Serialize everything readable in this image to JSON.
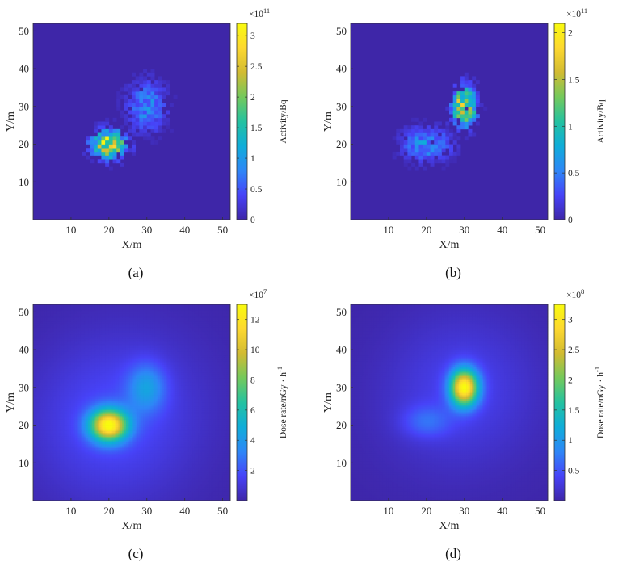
{
  "colormap": [
    "#3e26a8",
    "#4743f8",
    "#2e87f7",
    "#0fadd9",
    "#24c2a0",
    "#74c95c",
    "#d2bb32",
    "#fdd830",
    "#f9fb0e"
  ],
  "background_color": "#3e26a8",
  "chart_data": [
    {
      "type": "heatmap",
      "panel_label": "(a)",
      "xlabel": "X/m",
      "ylabel": "Y/m",
      "xlim": [
        0,
        52
      ],
      "ylim": [
        0,
        52
      ],
      "xticks": [
        10,
        20,
        30,
        40,
        50
      ],
      "yticks": [
        10,
        20,
        30,
        40,
        50
      ],
      "colorbar_label": "Activity/Bq",
      "colorbar_exponent": "×10",
      "colorbar_exponent_power": "11",
      "colorbar_range": [
        0,
        3.2
      ],
      "colorbar_ticks": [
        0,
        0.5,
        1,
        1.5,
        2,
        2.5,
        3
      ],
      "colorbar_tick_labels": [
        "0",
        "0.5",
        "1",
        "1.5",
        "2",
        "2.5",
        "3"
      ],
      "rendering": "pixelated",
      "sources": [
        {
          "x": 20,
          "y": 20,
          "peak": 3.2,
          "sigma_x": 3.0,
          "sigma_y": 2.5,
          "extent": 7
        },
        {
          "x": 30,
          "y": 30,
          "peak": 1.0,
          "sigma_x": 3.5,
          "sigma_y": 4.5,
          "extent": 10
        }
      ]
    },
    {
      "type": "heatmap",
      "panel_label": "(b)",
      "xlabel": "X/m",
      "ylabel": "Y/m",
      "xlim": [
        0,
        52
      ],
      "ylim": [
        0,
        52
      ],
      "xticks": [
        10,
        20,
        30,
        40,
        50
      ],
      "yticks": [
        10,
        20,
        30,
        40,
        50
      ],
      "colorbar_label": "Activity/Bq",
      "colorbar_exponent": "×10",
      "colorbar_exponent_power": "11",
      "colorbar_range": [
        0,
        2.1
      ],
      "colorbar_ticks": [
        0,
        0.5,
        1,
        1.5,
        2
      ],
      "colorbar_tick_labels": [
        "0",
        "0.5",
        "1",
        "1.5",
        "2"
      ],
      "rendering": "pixelated",
      "sources": [
        {
          "x": 20,
          "y": 20,
          "peak": 0.7,
          "sigma_x": 4.5,
          "sigma_y": 3.0,
          "extent": 9
        },
        {
          "x": 30,
          "y": 30,
          "peak": 2.1,
          "sigma_x": 2.0,
          "sigma_y": 3.5,
          "extent": 8
        }
      ]
    },
    {
      "type": "heatmap",
      "panel_label": "(c)",
      "xlabel": "X/m",
      "ylabel": "Y/m",
      "xlim": [
        0,
        52
      ],
      "ylim": [
        0,
        52
      ],
      "xticks": [
        10,
        20,
        30,
        40,
        50
      ],
      "yticks": [
        10,
        20,
        30,
        40,
        50
      ],
      "colorbar_label": "Dose rate/nGy · h",
      "colorbar_label_power": "-1",
      "colorbar_exponent": "×10",
      "colorbar_exponent_power": "7",
      "colorbar_range": [
        0,
        13
      ],
      "colorbar_ticks": [
        2,
        4,
        6,
        8,
        10,
        12
      ],
      "colorbar_tick_labels": [
        "2",
        "4",
        "6",
        "8",
        "10",
        "12"
      ],
      "rendering": "smooth",
      "sources": [
        {
          "x": 20,
          "y": 20,
          "peak": 13,
          "sigma_x": 3.5,
          "sigma_y": 3.0,
          "halo": 0.12,
          "halo_sigma": 15
        },
        {
          "x": 30,
          "y": 30,
          "peak": 3.5,
          "sigma_x": 3.5,
          "sigma_y": 4.5,
          "halo": 0.12,
          "halo_sigma": 15
        }
      ]
    },
    {
      "type": "heatmap",
      "panel_label": "(d)",
      "xlabel": "X/m",
      "ylabel": "Y/m",
      "xlim": [
        0,
        52
      ],
      "ylim": [
        0,
        52
      ],
      "xticks": [
        10,
        20,
        30,
        40,
        50
      ],
      "yticks": [
        10,
        20,
        30,
        40,
        50
      ],
      "colorbar_label": "Dose rate/nGy · h",
      "colorbar_label_power": "-1",
      "colorbar_exponent": "×10",
      "colorbar_exponent_power": "8",
      "colorbar_range": [
        0,
        3.25
      ],
      "colorbar_ticks": [
        0.5,
        1,
        1.5,
        2,
        2.5,
        3
      ],
      "colorbar_tick_labels": [
        "0.5",
        "1",
        "1.5",
        "2",
        "2.5",
        "3"
      ],
      "rendering": "smooth",
      "sources": [
        {
          "x": 20,
          "y": 21,
          "peak": 0.5,
          "sigma_x": 4.5,
          "sigma_y": 3.0,
          "halo": 0.1,
          "halo_sigma": 14
        },
        {
          "x": 30,
          "y": 30,
          "peak": 3.25,
          "sigma_x": 2.6,
          "sigma_y": 3.4,
          "halo": 0.1,
          "halo_sigma": 14
        }
      ]
    }
  ]
}
